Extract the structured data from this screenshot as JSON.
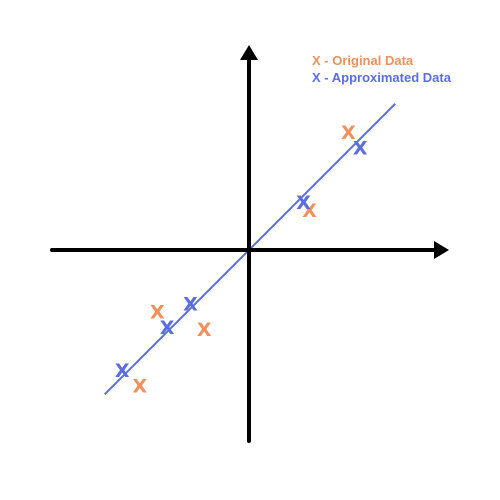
{
  "legend": {
    "original": {
      "label": "X - Original Data",
      "color": "#f0905a"
    },
    "approximated": {
      "label": "X - Approximated Data",
      "color": "#5a6ee0"
    }
  },
  "marker_glyph": "X",
  "axis_color": "#000000",
  "fit_line_color": "#5a6ee0",
  "chart_data": {
    "type": "scatter",
    "title": "",
    "xlabel": "",
    "ylabel": "",
    "xlim": [
      -10,
      10
    ],
    "ylim": [
      -10,
      10
    ],
    "grid": false,
    "fit_line": {
      "slope": 1.0,
      "intercept": 0,
      "x_range": [
        -7.4,
        7.5
      ]
    },
    "series": [
      {
        "name": "Original Data",
        "color": "#f0905a",
        "x": [
          5.1,
          3.1,
          -4.7,
          -2.3,
          -5.6
        ],
        "y": [
          6.0,
          2.0,
          -3.2,
          -4.1,
          -7.0
        ]
      },
      {
        "name": "Approximated Data",
        "color": "#5a6ee0",
        "x": [
          5.7,
          2.8,
          -3.0,
          -4.2,
          -6.5
        ],
        "y": [
          5.2,
          2.4,
          -2.8,
          -4.0,
          -6.2
        ]
      }
    ]
  }
}
